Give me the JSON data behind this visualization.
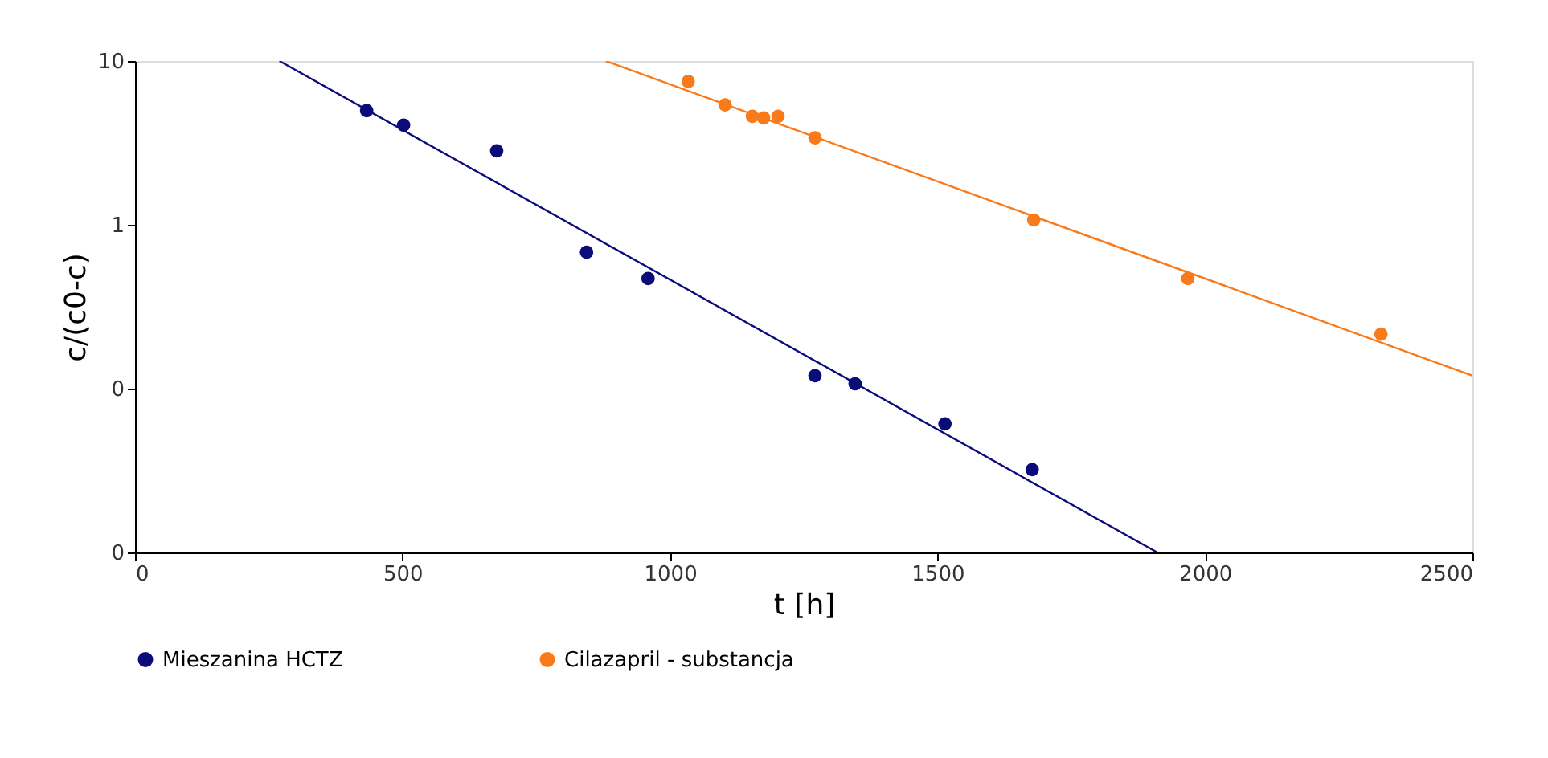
{
  "chart_data": {
    "type": "scatter",
    "xlabel": "t [h]",
    "ylabel": "c/(c0-c)",
    "log": "y",
    "xlim": [
      0,
      2500
    ],
    "xticks": [
      0,
      500,
      1000,
      1500,
      2000,
      2500
    ],
    "ylim": [
      0.01,
      10
    ],
    "yticks": [
      {
        "value": 0.01,
        "label": "0"
      },
      {
        "value": 0.1,
        "label": "0"
      },
      1,
      10
    ],
    "grid": false,
    "legend": "bottom",
    "marker": "circle",
    "series": [
      {
        "name": "Mieszanina HCTZ",
        "color": "#0b0b7a",
        "x": [
          433,
          502,
          676,
          844,
          959,
          1271,
          1346,
          1514,
          1677
        ],
        "values": [
          4.97,
          4.06,
          2.83,
          0.68,
          0.47,
          0.12,
          0.107,
          0.061,
          0.032
        ]
      },
      {
        "name": "Cilazapril - substancja",
        "color": "#f97a1a",
        "x": [
          1034,
          1103,
          1154,
          1175,
          1202,
          1271,
          1680,
          1968,
          2329
        ],
        "values": [
          7.5,
          5.4,
          4.6,
          4.5,
          4.6,
          3.4,
          1.07,
          0.47,
          0.215
        ]
      },
      {
        "type": "line",
        "color": "#0b0b7a",
        "x": [
          270,
          1911
        ],
        "values": [
          10,
          0.01
        ],
        "marker": "none"
      },
      {
        "type": "line",
        "color": "#f97a1a",
        "x": [
          880,
          2500
        ],
        "values": [
          10,
          0.12
        ],
        "marker": "none"
      }
    ]
  }
}
